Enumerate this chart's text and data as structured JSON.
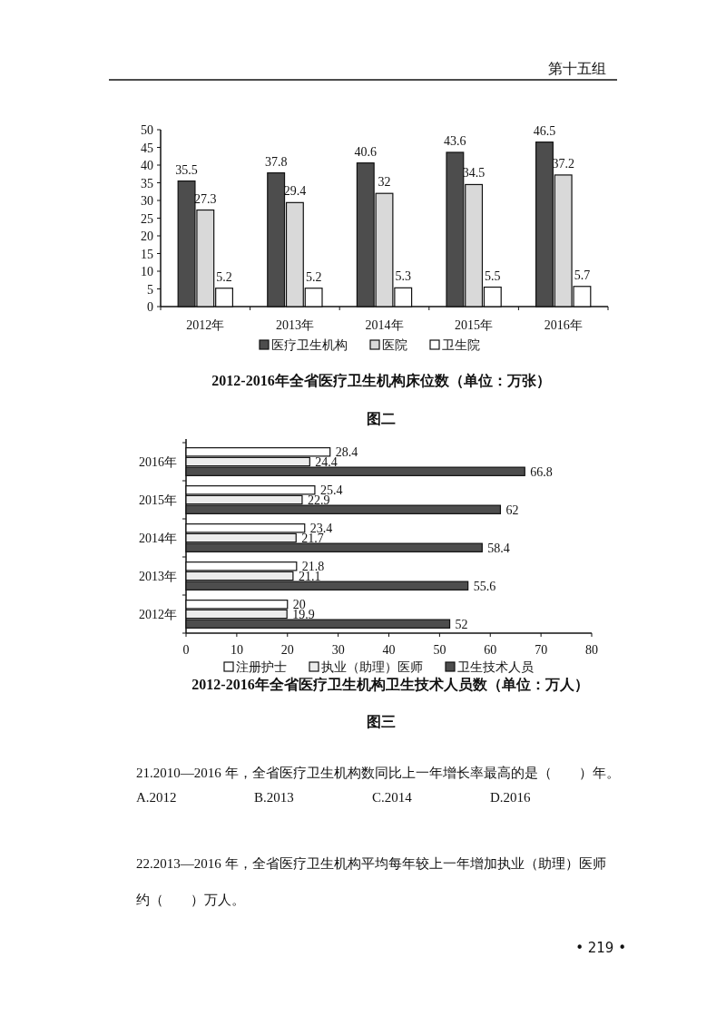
{
  "chart_data": [
    {
      "type": "bar",
      "title": "2012-2016年全省医疗卫生机构床位数（单位：万张）",
      "categories": [
        "2012年",
        "2013年",
        "2014年",
        "2015年",
        "2016年"
      ],
      "series": [
        {
          "name": "医疗卫生机构",
          "color": "#4d4d4d",
          "values": [
            35.5,
            37.8,
            40.6,
            43.6,
            46.5
          ]
        },
        {
          "name": "医院",
          "color": "#d9d9d9",
          "values": [
            27.3,
            29.4,
            32,
            34.5,
            37.2
          ]
        },
        {
          "name": "卫生院",
          "color": "#ffffff",
          "values": [
            5.2,
            5.2,
            5.3,
            5.5,
            5.7
          ]
        }
      ],
      "ylim": [
        0,
        50
      ],
      "yticks": [
        0,
        5,
        10,
        15,
        20,
        25,
        30,
        35,
        40,
        45,
        50
      ],
      "data_labels": true,
      "legend": "bottom",
      "grid": false,
      "annotations": [
        "第十五组",
        "图二"
      ]
    },
    {
      "type": "bar",
      "orientation": "horizontal",
      "title": "2012-2016年全省医疗卫生机构卫生技术人员数（单位：万人）",
      "categories": [
        "2016年",
        "2015年",
        "2014年",
        "2013年",
        "2012年"
      ],
      "series": [
        {
          "name": "注册护士",
          "color": "#ffffff",
          "values": [
            28.4,
            25.4,
            23.4,
            21.8,
            20
          ]
        },
        {
          "name": "执业（助理）医师",
          "color": "#ececec",
          "values": [
            24.4,
            22.9,
            21.7,
            21.1,
            19.9
          ]
        },
        {
          "name": "卫生技术人员",
          "color": "#4d4d4d",
          "values": [
            66.8,
            62,
            58.4,
            55.6,
            52
          ]
        }
      ],
      "xlim": [
        0,
        80
      ],
      "xticks": [
        0,
        10,
        20,
        30,
        40,
        50,
        60,
        70,
        80
      ],
      "data_labels": true,
      "legend": "bottom",
      "grid": false,
      "annotations": [
        "图三",
        "21.2010—2016 年，全省医疗卫生机构数同比上一年增长率最高的是（　　）年。",
        "A.2012",
        "B.2013",
        "C.2014",
        "D.2016",
        "22.2013—2016 年，全省医疗卫生机构平均每年较上一年增加执业（助理）医师约（　　）万人。",
        "• 219 •"
      ]
    }
  ]
}
